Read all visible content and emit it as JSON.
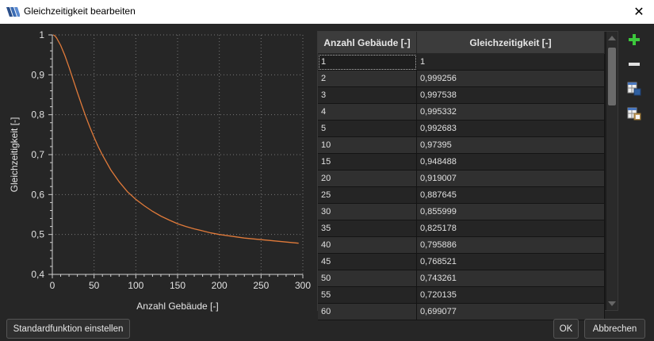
{
  "window": {
    "title": "Gleichzeitigkeit bearbeiten",
    "close_glyph": "✕",
    "icon": "app-logo-icon"
  },
  "chart_data": {
    "type": "line",
    "xlabel": "Anzahl Gebäude [-]",
    "ylabel": "Gleichzeitigkeit [-]",
    "xlim": [
      0,
      300
    ],
    "ylim": [
      0.4,
      1.0
    ],
    "x_ticks": [
      0,
      50,
      100,
      150,
      200,
      250,
      300
    ],
    "y_ticks": [
      0.4,
      0.5,
      0.6,
      0.7,
      0.8,
      0.9,
      1.0
    ],
    "x_tick_labels": [
      "0",
      "50",
      "100",
      "150",
      "200",
      "250",
      "300"
    ],
    "y_tick_labels": [
      "0,4",
      "0,5",
      "0,6",
      "0,7",
      "0,8",
      "0,9",
      "1"
    ],
    "grid": true,
    "line_color": "#e07a3a",
    "series": [
      {
        "x": [
          1,
          2,
          3,
          4,
          5,
          10,
          15,
          20,
          25,
          30,
          35,
          40,
          45,
          50,
          55,
          60,
          70,
          80,
          90,
          100,
          110,
          120,
          130,
          140,
          150,
          160,
          170,
          180,
          190,
          200,
          210,
          220,
          230,
          240,
          250,
          260,
          270,
          280,
          290,
          295
        ],
        "values": [
          1,
          0.999256,
          0.997538,
          0.995332,
          0.992683,
          0.97395,
          0.948488,
          0.919007,
          0.887645,
          0.855999,
          0.825178,
          0.795886,
          0.768521,
          0.743261,
          0.720135,
          0.699,
          0.662,
          0.632,
          0.607,
          0.588,
          0.572,
          0.558,
          0.546,
          0.536,
          0.527,
          0.52,
          0.514,
          0.509,
          0.504,
          0.5,
          0.497,
          0.494,
          0.491,
          0.489,
          0.487,
          0.485,
          0.483,
          0.481,
          0.479,
          0.478
        ]
      }
    ]
  },
  "table": {
    "headers": [
      "Anzahl Gebäude [-]",
      "Gleichzeitigkeit [-]"
    ],
    "rows": [
      [
        "1",
        "1"
      ],
      [
        "2",
        "0,999256"
      ],
      [
        "3",
        "0,997538"
      ],
      [
        "4",
        "0,995332"
      ],
      [
        "5",
        "0,992683"
      ],
      [
        "10",
        "0,97395"
      ],
      [
        "15",
        "0,948488"
      ],
      [
        "20",
        "0,919007"
      ],
      [
        "25",
        "0,887645"
      ],
      [
        "30",
        "0,855999"
      ],
      [
        "35",
        "0,825178"
      ],
      [
        "40",
        "0,795886"
      ],
      [
        "45",
        "0,768521"
      ],
      [
        "50",
        "0,743261"
      ],
      [
        "55",
        "0,720135"
      ],
      [
        "60",
        "0,699077"
      ]
    ]
  },
  "side_buttons": {
    "add": "plus-icon",
    "remove": "minus-icon",
    "copy": "copy-table-icon",
    "paste": "paste-table-icon",
    "add_color": "#3cc83c"
  },
  "footer": {
    "default_label": "Standardfunktion einstellen",
    "ok_label": "OK",
    "cancel_label": "Abbrechen"
  }
}
